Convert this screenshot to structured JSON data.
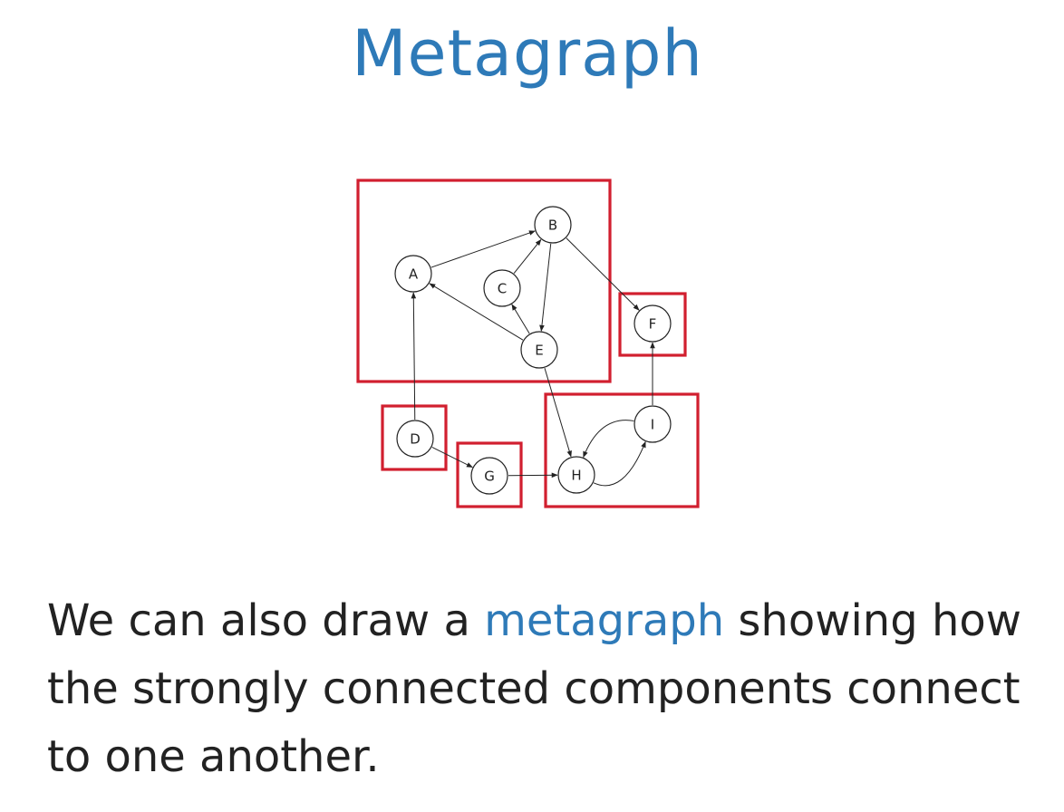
{
  "title": "Metagraph",
  "diagram": {
    "nodes": [
      {
        "id": "A",
        "label": "A"
      },
      {
        "id": "B",
        "label": "B"
      },
      {
        "id": "C",
        "label": "C"
      },
      {
        "id": "D",
        "label": "D"
      },
      {
        "id": "E",
        "label": "E"
      },
      {
        "id": "F",
        "label": "F"
      },
      {
        "id": "G",
        "label": "G"
      },
      {
        "id": "H",
        "label": "H"
      },
      {
        "id": "I",
        "label": "I"
      }
    ],
    "edges": [
      {
        "from": "A",
        "to": "B"
      },
      {
        "from": "B",
        "to": "E"
      },
      {
        "from": "E",
        "to": "A"
      },
      {
        "from": "E",
        "to": "C"
      },
      {
        "from": "C",
        "to": "B"
      },
      {
        "from": "B",
        "to": "F"
      },
      {
        "from": "D",
        "to": "A"
      },
      {
        "from": "D",
        "to": "G"
      },
      {
        "from": "G",
        "to": "H"
      },
      {
        "from": "E",
        "to": "H"
      },
      {
        "from": "H",
        "to": "I"
      },
      {
        "from": "I",
        "to": "H"
      },
      {
        "from": "I",
        "to": "F"
      }
    ],
    "components": [
      {
        "members": [
          "A",
          "B",
          "C",
          "E"
        ]
      },
      {
        "members": [
          "F"
        ]
      },
      {
        "members": [
          "D"
        ]
      },
      {
        "members": [
          "G"
        ]
      },
      {
        "members": [
          "H",
          "I"
        ]
      }
    ],
    "component_color": "#d11f2f"
  },
  "body": {
    "text_before": "We can also draw a ",
    "highlight": "metagraph",
    "text_after": " showing how the strongly connected components connect to one another.",
    "highlight_color": "#2e7ab8"
  }
}
